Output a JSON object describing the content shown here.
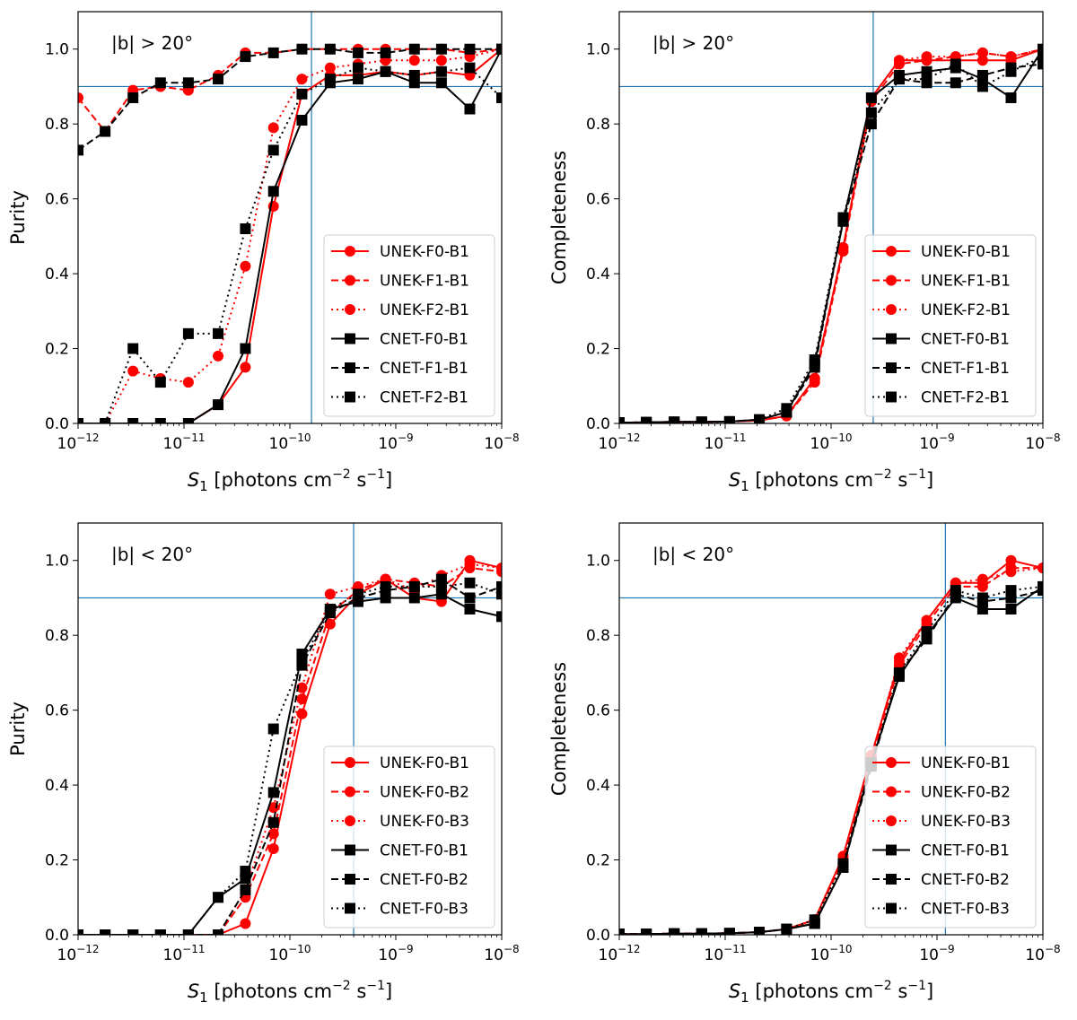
{
  "figure": {
    "colors": {
      "unek": "#ff0000",
      "cnet": "#000000",
      "threshold": "#1f77b4"
    }
  },
  "chart_data": [
    {
      "type": "line",
      "panel": "top-left",
      "annotation": "|b| > 20°",
      "xlabel_var": "S",
      "xlabel_sub": "1",
      "xlabel_unit_start": " [photons cm",
      "xlabel_exp1": "−2",
      "xlabel_mid": " s",
      "xlabel_exp2": "−1",
      "xlabel_end": "]",
      "ylabel": "Purity",
      "x_scale": "log",
      "xlim": [
        1e-12,
        1e-08
      ],
      "ylim": [
        0,
        1.1
      ],
      "x_ticks": [
        {
          "base": "10",
          "exp": "−12"
        },
        {
          "base": "10",
          "exp": "−11"
        },
        {
          "base": "10",
          "exp": "−10"
        },
        {
          "base": "10",
          "exp": "−9"
        },
        {
          "base": "10",
          "exp": "−8"
        }
      ],
      "y_ticks": [
        "0.0",
        "0.2",
        "0.4",
        "0.6",
        "0.8",
        "1.0"
      ],
      "y_tick_values": [
        0,
        0.2,
        0.4,
        0.6,
        0.8,
        1.0
      ],
      "threshold": {
        "x": 1.6e-10,
        "y": 0.9
      },
      "legend_position": "lower-right",
      "x": [
        1e-12,
        1.8e-12,
        3.3e-12,
        6e-12,
        1.1e-11,
        2.1e-11,
        3.8e-11,
        7e-11,
        1.3e-10,
        2.4e-10,
        4.4e-10,
        8e-10,
        1.5e-09,
        2.7e-09,
        5e-09,
        1e-08
      ],
      "series": [
        {
          "name": "UNEK-F0-B1",
          "marker": "circle",
          "color": "#ff0000",
          "dash": "solid",
          "values": [
            0,
            0,
            0,
            0,
            0,
            0.05,
            0.15,
            0.58,
            0.88,
            0.93,
            0.93,
            0.94,
            0.93,
            0.94,
            0.93,
            1.0
          ]
        },
        {
          "name": "UNEK-F1-B1",
          "marker": "circle",
          "color": "#ff0000",
          "dash": "dashed",
          "values": [
            0.87,
            0.78,
            0.89,
            0.9,
            0.89,
            0.93,
            0.99,
            0.99,
            1.0,
            1.0,
            1.0,
            1.0,
            1.0,
            1.0,
            0.99,
            1.0
          ]
        },
        {
          "name": "UNEK-F2-B1",
          "marker": "circle",
          "color": "#ff0000",
          "dash": "dotted",
          "values": [
            0,
            0,
            0.14,
            0.12,
            0.11,
            0.18,
            0.42,
            0.79,
            0.92,
            0.95,
            0.96,
            0.97,
            0.97,
            0.97,
            0.98,
            1.0
          ]
        },
        {
          "name": "CNET-F0-B1",
          "marker": "square",
          "color": "#000000",
          "dash": "solid",
          "values": [
            0,
            0,
            0,
            0,
            0,
            0.05,
            0.2,
            0.62,
            0.81,
            0.91,
            0.92,
            0.94,
            0.91,
            0.91,
            0.84,
            1.0
          ]
        },
        {
          "name": "CNET-F1-B1",
          "marker": "square",
          "color": "#000000",
          "dash": "dashed",
          "values": [
            0.73,
            0.78,
            0.87,
            0.91,
            0.91,
            0.92,
            0.98,
            0.99,
            1.0,
            1.0,
            0.99,
            0.99,
            1.0,
            1.0,
            1.0,
            1.0
          ]
        },
        {
          "name": "CNET-F2-B1",
          "marker": "square",
          "color": "#000000",
          "dash": "dotted",
          "values": [
            0,
            0,
            0.2,
            0.11,
            0.24,
            0.24,
            0.52,
            0.73,
            0.88,
            0.92,
            0.95,
            0.94,
            0.93,
            0.94,
            0.95,
            0.87
          ]
        }
      ]
    },
    {
      "type": "line",
      "panel": "top-right",
      "annotation": "|b| > 20°",
      "xlabel_var": "S",
      "xlabel_sub": "1",
      "xlabel_unit_start": " [photons cm",
      "xlabel_exp1": "−2",
      "xlabel_mid": " s",
      "xlabel_exp2": "−1",
      "xlabel_end": "]",
      "ylabel": "Completeness",
      "x_scale": "log",
      "xlim": [
        1e-12,
        1e-08
      ],
      "ylim": [
        0,
        1.1
      ],
      "x_ticks": [
        {
          "base": "10",
          "exp": "−12"
        },
        {
          "base": "10",
          "exp": "−11"
        },
        {
          "base": "10",
          "exp": "−10"
        },
        {
          "base": "10",
          "exp": "−9"
        },
        {
          "base": "10",
          "exp": "−8"
        }
      ],
      "y_ticks": [
        "0.0",
        "0.2",
        "0.4",
        "0.6",
        "0.8",
        "1.0"
      ],
      "y_tick_values": [
        0,
        0.2,
        0.4,
        0.6,
        0.8,
        1.0
      ],
      "threshold": {
        "x": 2.5e-10,
        "y": 0.9
      },
      "legend_position": "lower-right",
      "x": [
        1e-12,
        1.8e-12,
        3.3e-12,
        6e-12,
        1.1e-11,
        2.1e-11,
        3.8e-11,
        7e-11,
        1.3e-10,
        2.4e-10,
        4.4e-10,
        8e-10,
        1.5e-09,
        2.7e-09,
        5e-09,
        1e-08
      ],
      "series": [
        {
          "name": "UNEK-F0-B1",
          "marker": "circle",
          "color": "#ff0000",
          "dash": "solid",
          "values": [
            0.002,
            0.003,
            0.004,
            0.004,
            0.005,
            0.008,
            0.02,
            0.12,
            0.47,
            0.87,
            0.97,
            0.97,
            0.97,
            0.97,
            0.97,
            1.0
          ]
        },
        {
          "name": "UNEK-F1-B1",
          "marker": "circle",
          "color": "#ff0000",
          "dash": "dashed",
          "values": [
            0.002,
            0.003,
            0.004,
            0.004,
            0.005,
            0.008,
            0.02,
            0.11,
            0.46,
            0.86,
            0.96,
            0.97,
            0.98,
            0.99,
            0.98,
            1.0
          ]
        },
        {
          "name": "UNEK-F2-B1",
          "marker": "circle",
          "color": "#ff0000",
          "dash": "dotted",
          "values": [
            0.002,
            0.003,
            0.004,
            0.004,
            0.005,
            0.008,
            0.02,
            0.12,
            0.47,
            0.87,
            0.97,
            0.98,
            0.98,
            0.99,
            0.98,
            1.0
          ]
        },
        {
          "name": "CNET-F0-B1",
          "marker": "square",
          "color": "#000000",
          "dash": "solid",
          "values": [
            0.002,
            0.003,
            0.004,
            0.004,
            0.005,
            0.01,
            0.03,
            0.16,
            0.54,
            0.87,
            0.93,
            0.94,
            0.95,
            0.92,
            0.87,
            1.0
          ]
        },
        {
          "name": "CNET-F1-B1",
          "marker": "square",
          "color": "#000000",
          "dash": "dashed",
          "values": [
            0.002,
            0.003,
            0.004,
            0.004,
            0.005,
            0.01,
            0.03,
            0.15,
            0.54,
            0.8,
            0.92,
            0.91,
            0.91,
            0.93,
            0.95,
            0.96
          ]
        },
        {
          "name": "CNET-F2-B1",
          "marker": "square",
          "color": "#000000",
          "dash": "dotted",
          "values": [
            0.002,
            0.003,
            0.004,
            0.004,
            0.005,
            0.01,
            0.04,
            0.17,
            0.55,
            0.83,
            0.92,
            0.92,
            0.96,
            0.9,
            0.94,
            0.98
          ]
        }
      ]
    },
    {
      "type": "line",
      "panel": "bottom-left",
      "annotation": "|b| < 20°",
      "xlabel_var": "S",
      "xlabel_sub": "1",
      "xlabel_unit_start": " [photons cm",
      "xlabel_exp1": "−2",
      "xlabel_mid": " s",
      "xlabel_exp2": "−1",
      "xlabel_end": "]",
      "ylabel": "Purity",
      "x_scale": "log",
      "xlim": [
        1e-12,
        1e-08
      ],
      "ylim": [
        0,
        1.1
      ],
      "x_ticks": [
        {
          "base": "10",
          "exp": "−12"
        },
        {
          "base": "10",
          "exp": "−11"
        },
        {
          "base": "10",
          "exp": "−10"
        },
        {
          "base": "10",
          "exp": "−9"
        },
        {
          "base": "10",
          "exp": "−8"
        }
      ],
      "y_ticks": [
        "0.0",
        "0.2",
        "0.4",
        "0.6",
        "0.8",
        "1.0"
      ],
      "y_tick_values": [
        0,
        0.2,
        0.4,
        0.6,
        0.8,
        1.0
      ],
      "threshold": {
        "x": 4e-10,
        "y": 0.9
      },
      "legend_position": "lower-right",
      "x": [
        1e-12,
        1.8e-12,
        3.3e-12,
        6e-12,
        1.1e-11,
        2.1e-11,
        3.8e-11,
        7e-11,
        1.3e-10,
        2.4e-10,
        4.4e-10,
        8e-10,
        1.5e-09,
        2.7e-09,
        5e-09,
        1e-08
      ],
      "series": [
        {
          "name": "UNEK-F0-B1",
          "marker": "circle",
          "color": "#ff0000",
          "dash": "solid",
          "values": [
            0,
            0,
            0,
            0,
            0,
            0,
            0.03,
            0.23,
            0.59,
            0.83,
            0.91,
            0.95,
            0.9,
            0.89,
            1.0,
            0.98
          ]
        },
        {
          "name": "UNEK-F0-B2",
          "marker": "circle",
          "color": "#ff0000",
          "dash": "dashed",
          "values": [
            0,
            0,
            0,
            0,
            0,
            0,
            0.1,
            0.27,
            0.63,
            0.86,
            0.92,
            0.95,
            0.94,
            0.93,
            0.98,
            0.97
          ]
        },
        {
          "name": "UNEK-F0-B3",
          "marker": "circle",
          "color": "#ff0000",
          "dash": "dotted",
          "values": [
            0,
            0,
            0,
            0,
            0,
            0,
            0.12,
            0.34,
            0.66,
            0.91,
            0.93,
            0.95,
            0.92,
            0.96,
            0.99,
            0.98
          ]
        },
        {
          "name": "CNET-F0-B1",
          "marker": "square",
          "color": "#000000",
          "dash": "solid",
          "values": [
            0,
            0,
            0,
            0,
            0,
            0.1,
            0.15,
            0.38,
            0.75,
            0.87,
            0.89,
            0.9,
            0.9,
            0.91,
            0.87,
            0.85
          ]
        },
        {
          "name": "CNET-F0-B2",
          "marker": "square",
          "color": "#000000",
          "dash": "dashed",
          "values": [
            0,
            0,
            0,
            0,
            0,
            0,
            0.12,
            0.3,
            0.72,
            0.86,
            0.9,
            0.92,
            0.93,
            0.95,
            0.9,
            0.93
          ]
        },
        {
          "name": "CNET-F0-B3",
          "marker": "square",
          "color": "#000000",
          "dash": "dotted",
          "values": [
            0,
            0,
            0,
            0,
            0,
            0.1,
            0.17,
            0.55,
            0.73,
            0.87,
            0.91,
            0.93,
            0.93,
            0.93,
            0.94,
            0.91
          ]
        }
      ]
    },
    {
      "type": "line",
      "panel": "bottom-right",
      "annotation": "|b| < 20°",
      "xlabel_var": "S",
      "xlabel_sub": "1",
      "xlabel_unit_start": " [photons cm",
      "xlabel_exp1": "−2",
      "xlabel_mid": " s",
      "xlabel_exp2": "−1",
      "xlabel_end": "]",
      "ylabel": "Completeness",
      "x_scale": "log",
      "xlim": [
        1e-12,
        1e-08
      ],
      "ylim": [
        0,
        1.1
      ],
      "x_ticks": [
        {
          "base": "10",
          "exp": "−12"
        },
        {
          "base": "10",
          "exp": "−11"
        },
        {
          "base": "10",
          "exp": "−10"
        },
        {
          "base": "10",
          "exp": "−9"
        },
        {
          "base": "10",
          "exp": "−8"
        }
      ],
      "y_ticks": [
        "0.0",
        "0.2",
        "0.4",
        "0.6",
        "0.8",
        "1.0"
      ],
      "y_tick_values": [
        0,
        0.2,
        0.4,
        0.6,
        0.8,
        1.0
      ],
      "threshold": {
        "x": 1.2e-09,
        "y": 0.9
      },
      "legend_position": "lower-right",
      "x": [
        1e-12,
        1.8e-12,
        3.3e-12,
        6e-12,
        1.1e-11,
        2.1e-11,
        3.8e-11,
        7e-11,
        1.3e-10,
        2.4e-10,
        4.4e-10,
        8e-10,
        1.5e-09,
        2.7e-09,
        5e-09,
        1e-08
      ],
      "series": [
        {
          "name": "UNEK-F0-B1",
          "marker": "circle",
          "color": "#ff0000",
          "dash": "solid",
          "values": [
            0.002,
            0.002,
            0.003,
            0.003,
            0.004,
            0.007,
            0.015,
            0.04,
            0.21,
            0.48,
            0.73,
            0.84,
            0.94,
            0.94,
            1.0,
            0.98
          ]
        },
        {
          "name": "UNEK-F0-B2",
          "marker": "circle",
          "color": "#ff0000",
          "dash": "dashed",
          "values": [
            0.002,
            0.002,
            0.003,
            0.003,
            0.004,
            0.007,
            0.015,
            0.04,
            0.2,
            0.47,
            0.72,
            0.83,
            0.93,
            0.93,
            0.98,
            0.98
          ]
        },
        {
          "name": "UNEK-F0-B3",
          "marker": "circle",
          "color": "#ff0000",
          "dash": "dotted",
          "values": [
            0.002,
            0.002,
            0.003,
            0.003,
            0.004,
            0.007,
            0.015,
            0.04,
            0.2,
            0.47,
            0.74,
            0.84,
            0.94,
            0.95,
            0.97,
            0.98
          ]
        },
        {
          "name": "CNET-F0-B1",
          "marker": "square",
          "color": "#000000",
          "dash": "solid",
          "values": [
            0.002,
            0.002,
            0.003,
            0.003,
            0.004,
            0.007,
            0.015,
            0.03,
            0.18,
            0.46,
            0.69,
            0.8,
            0.9,
            0.87,
            0.87,
            0.93
          ]
        },
        {
          "name": "CNET-F0-B2",
          "marker": "square",
          "color": "#000000",
          "dash": "dashed",
          "values": [
            0.002,
            0.002,
            0.003,
            0.003,
            0.004,
            0.007,
            0.015,
            0.03,
            0.18,
            0.45,
            0.7,
            0.79,
            0.91,
            0.89,
            0.9,
            0.92
          ]
        },
        {
          "name": "CNET-F0-B3",
          "marker": "square",
          "color": "#000000",
          "dash": "dotted",
          "values": [
            0.002,
            0.002,
            0.003,
            0.003,
            0.004,
            0.007,
            0.015,
            0.04,
            0.19,
            0.46,
            0.7,
            0.81,
            0.92,
            0.9,
            0.92,
            0.93
          ]
        }
      ]
    }
  ]
}
